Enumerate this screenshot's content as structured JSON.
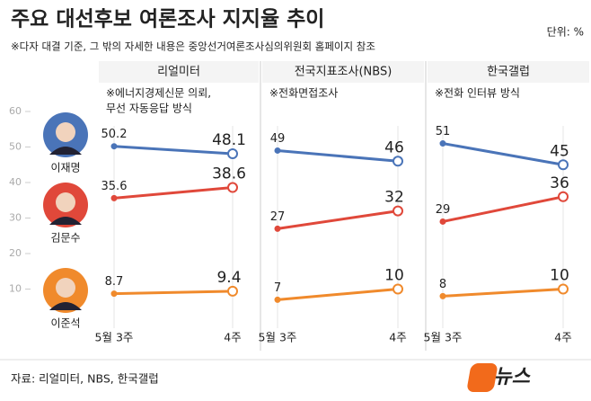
{
  "chart_data": {
    "type": "line",
    "title": "주요 대선후보 여론조사 지지율 추이",
    "subtitle": "※다자 대결 기준, 그 밖의 자세한 내용은 중앙선거여론조사심의위원회 홈페이지 참조",
    "unit": "단위: %",
    "source": "자료: 리얼미터, NBS, 한국갤럽",
    "logo": [
      "뉴스",
      "1"
    ],
    "ylim": [
      0,
      60
    ],
    "yticks": [
      10,
      20,
      30,
      40,
      50,
      60
    ],
    "series": [
      {
        "name": "이재명",
        "color": "#4a74b8"
      },
      {
        "name": "김문수",
        "color": "#e0483a"
      },
      {
        "name": "이준석",
        "color": "#f08a2c"
      }
    ],
    "panels": [
      {
        "title": "리얼미터",
        "note": [
          "※에너지경제신문 의뢰,",
          "무선 자동응답 방식"
        ],
        "categories": [
          "5월 3주",
          "4주"
        ],
        "values": [
          [
            50.2,
            48.1
          ],
          [
            35.6,
            38.6
          ],
          [
            8.7,
            9.4
          ]
        ]
      },
      {
        "title": "전국지표조사(NBS)",
        "note": [
          "※전화면접조사"
        ],
        "categories": [
          "5월 3주",
          "4주"
        ],
        "values": [
          [
            49,
            46
          ],
          [
            27,
            32
          ],
          [
            7,
            10
          ]
        ]
      },
      {
        "title": "한국갤럽",
        "note": [
          "※전화 인터뷰 방식"
        ],
        "categories": [
          "5월 3주",
          "4주"
        ],
        "values": [
          [
            51,
            45
          ],
          [
            29,
            36
          ],
          [
            8,
            10
          ]
        ]
      }
    ]
  }
}
